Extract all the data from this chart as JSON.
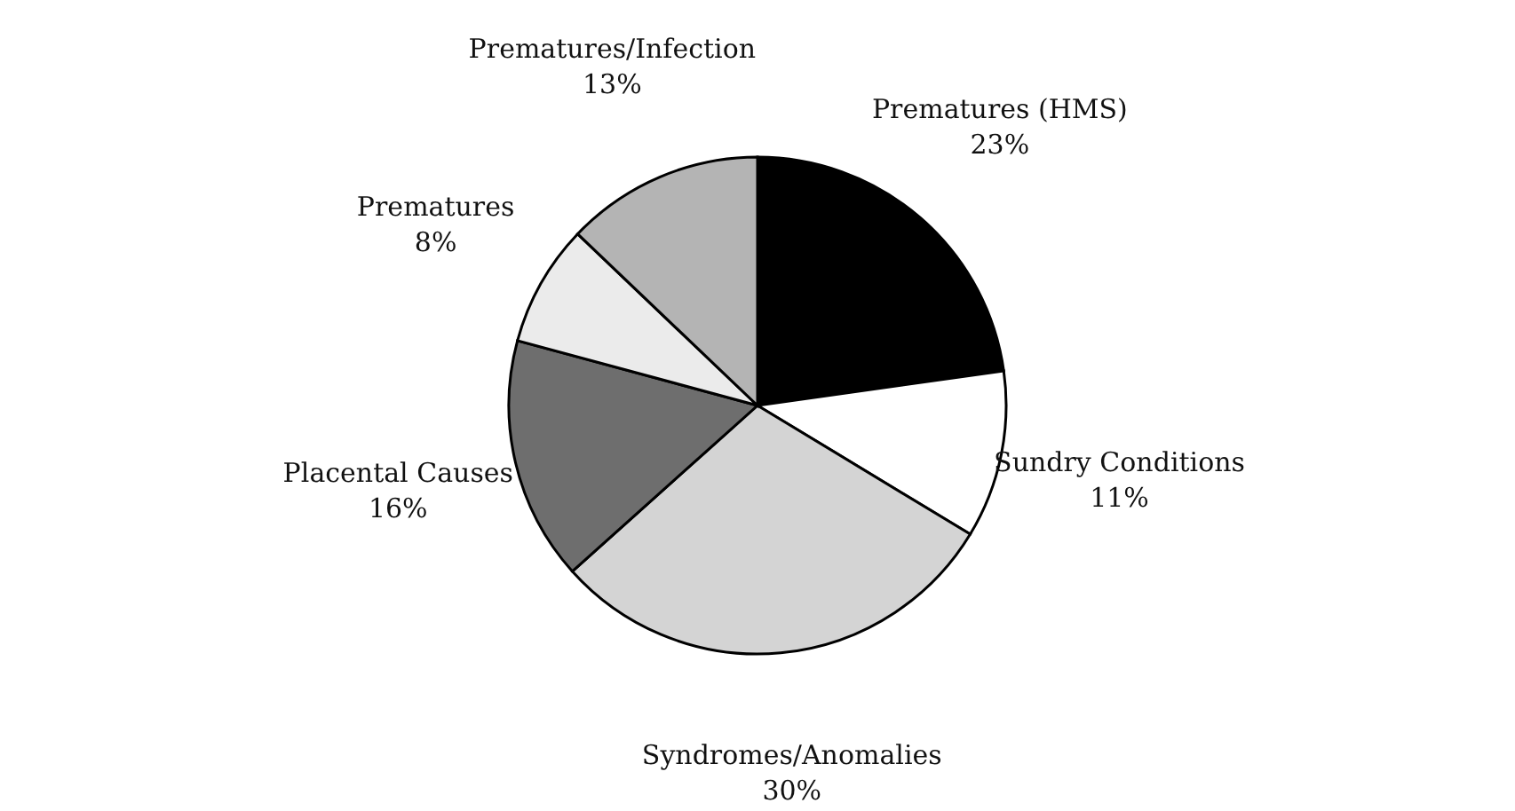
{
  "chart_data": {
    "type": "pie",
    "categories": [
      "Prematures (HMS)",
      "Sundry Conditions",
      "Syndromes/Anomalies",
      "Placental Causes",
      "Prematures",
      "Prematures/Infection"
    ],
    "values": [
      23,
      11,
      30,
      16,
      8,
      13
    ],
    "value_labels": [
      "23%",
      "11%",
      "30%",
      "16%",
      "8%",
      "13%"
    ],
    "colors": [
      "#000000",
      "#ffffff",
      "#d4d4d4",
      "#6e6e6e",
      "#ebebeb",
      "#b4b4b4"
    ],
    "legend": false
  }
}
